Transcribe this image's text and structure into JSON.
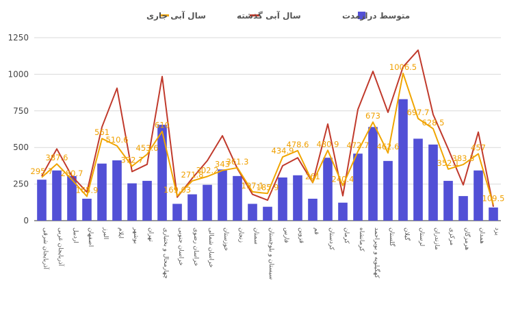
{
  "chart_data": {
    "type": "bar",
    "legend": {
      "position": "top",
      "items": [
        {
          "key": "series_0",
          "label": "متوسط درازمدت",
          "color": "#5250d6",
          "shape": "square"
        },
        {
          "key": "series_1",
          "label": "سال آبی گذشته",
          "color": "#c0392b",
          "shape": "line"
        },
        {
          "key": "series_2",
          "label": "سال آبی جاری",
          "color": "#f0a500",
          "shape": "line"
        }
      ]
    },
    "ylim": [
      0,
      1250
    ],
    "yticks": [
      "0",
      "250",
      "500",
      "750",
      "1000",
      "1250"
    ],
    "grid": true,
    "categories": [
      "آذربایجان شرقی",
      "آذربایجان غربی",
      "اردبیل",
      "اصفهان",
      "البرز",
      "ایلام",
      "بوشهر",
      "تهران",
      "چهارمحال و بختیاری",
      "خراسان جنوبی",
      "خراسان رضوی",
      "خراسان شمالی",
      "خوزستان",
      "زنجان",
      "سمنان",
      "سیستان و بلوچستان",
      "فارس",
      "قزوین",
      "قم",
      "کردستان",
      "کرمان",
      "کرمانشاه",
      "کهگیلویه و بویراحمد",
      "گلستان",
      "گیلان",
      "لرستان",
      "مازندران",
      "مرکزی",
      "هرمزگان",
      "همدان",
      "یزد"
    ],
    "series": [
      {
        "name": "متوسط درازمدت",
        "type": "bar",
        "color": "#5250d6",
        "values": [
          280,
          343,
          305,
          150,
          390,
          412,
          255,
          272,
          655,
          115,
          180,
          245,
          350,
          305,
          115,
          95,
          295,
          310,
          150,
          430,
          123,
          458,
          640,
          408,
          830,
          560,
          520,
          272,
          168,
          343,
          90
        ]
      },
      {
        "name": "سال آبی گذشته",
        "type": "line",
        "color": "#c0392b",
        "values": [
          305,
          490,
          305,
          195,
          640,
          905,
          335,
          385,
          985,
          160,
          290,
          410,
          580,
          355,
          180,
          140,
          375,
          430,
          260,
          660,
          170,
          760,
          1020,
          740,
          1050,
          1165,
          725,
          490,
          245,
          605,
          95
        ]
      },
      {
        "name": "سال آبی جاری",
        "type": "line",
        "color": "#f0a500",
        "values": [
          295.7,
          387.6,
          280.7,
          165.9,
          561,
          510.6,
          372.7,
          453.6,
          610,
          169.03,
          271.8,
          302.2,
          343,
          361.3,
          197.1,
          185.9,
          434.9,
          478.6,
          261,
          480.9,
          240.4,
          472.7,
          673,
          462.6,
          1006.5,
          697.7,
          628.5,
          352.1,
          383.3,
          457,
          109.5
        ],
        "labels": [
          "295.7",
          "387.6",
          "280.7",
          "165.9",
          "561",
          "510.6",
          "372.7",
          "453.6",
          "610",
          "169.03",
          "271.8",
          "302.2",
          "343",
          "361.3",
          "197.1",
          "185.9",
          "434.9",
          "478.6",
          "261",
          "480.9",
          "240.4",
          "472.7",
          "673",
          "462.6",
          "1006.5",
          "697.7",
          "628.5",
          "352.1",
          "383.3",
          "457",
          "109.5"
        ]
      }
    ]
  }
}
